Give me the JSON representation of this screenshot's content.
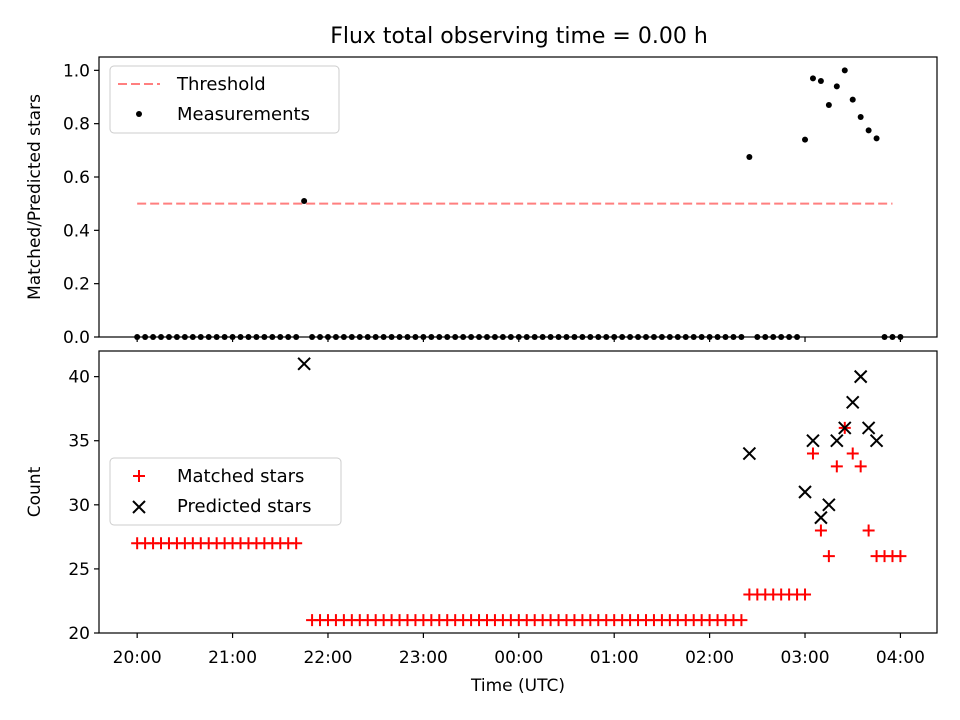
{
  "figure": {
    "title": "Flux total observing time = 0.00 h"
  },
  "colors": {
    "threshold": "#ff7f7f",
    "measurements": "#000000",
    "matched": "#ff0000",
    "predicted": "#000000"
  },
  "chart_data": [
    {
      "type": "scatter",
      "panel": "top",
      "title": "Flux total observing time = 0.00 h",
      "xlabel": "",
      "ylabel": "Matched/Predicted stars",
      "xlim": [
        "19:36",
        "04:23"
      ],
      "ylim": [
        0,
        1.05
      ],
      "yticks": [
        0.0,
        0.2,
        0.4,
        0.6,
        0.8,
        1.0
      ],
      "ytick_labels": [
        "0.0",
        "0.2",
        "0.4",
        "0.6",
        "0.8",
        "1.0"
      ],
      "grid": false,
      "legend": "upper-left",
      "threshold": {
        "name": "Threshold",
        "value": 0.5,
        "x_start": "20:00",
        "x_end": "03:55",
        "style": "dashed"
      },
      "series": [
        {
          "name": "Measurements",
          "marker": "dot",
          "points": [
            [
              "20:00",
              0
            ],
            [
              "20:05",
              0
            ],
            [
              "20:10",
              0
            ],
            [
              "20:15",
              0
            ],
            [
              "20:20",
              0
            ],
            [
              "20:25",
              0
            ],
            [
              "20:30",
              0
            ],
            [
              "20:35",
              0
            ],
            [
              "20:40",
              0
            ],
            [
              "20:45",
              0
            ],
            [
              "20:50",
              0
            ],
            [
              "20:55",
              0
            ],
            [
              "21:00",
              0
            ],
            [
              "21:05",
              0
            ],
            [
              "21:10",
              0
            ],
            [
              "21:15",
              0
            ],
            [
              "21:20",
              0
            ],
            [
              "21:25",
              0
            ],
            [
              "21:30",
              0
            ],
            [
              "21:35",
              0
            ],
            [
              "21:40",
              0
            ],
            [
              "21:45",
              0.51
            ],
            [
              "21:50",
              0
            ],
            [
              "21:55",
              0
            ],
            [
              "22:00",
              0
            ],
            [
              "22:05",
              0
            ],
            [
              "22:10",
              0
            ],
            [
              "22:15",
              0
            ],
            [
              "22:20",
              0
            ],
            [
              "22:25",
              0
            ],
            [
              "22:30",
              0
            ],
            [
              "22:35",
              0
            ],
            [
              "22:40",
              0
            ],
            [
              "22:45",
              0
            ],
            [
              "22:50",
              0
            ],
            [
              "22:55",
              0
            ],
            [
              "23:00",
              0
            ],
            [
              "23:05",
              0
            ],
            [
              "23:10",
              0
            ],
            [
              "23:15",
              0
            ],
            [
              "23:20",
              0
            ],
            [
              "23:25",
              0
            ],
            [
              "23:30",
              0
            ],
            [
              "23:35",
              0
            ],
            [
              "23:40",
              0
            ],
            [
              "23:45",
              0
            ],
            [
              "23:50",
              0
            ],
            [
              "23:55",
              0
            ],
            [
              "00:00",
              0
            ],
            [
              "00:05",
              0
            ],
            [
              "00:10",
              0
            ],
            [
              "00:15",
              0
            ],
            [
              "00:20",
              0
            ],
            [
              "00:25",
              0
            ],
            [
              "00:30",
              0
            ],
            [
              "00:35",
              0
            ],
            [
              "00:40",
              0
            ],
            [
              "00:45",
              0
            ],
            [
              "00:50",
              0
            ],
            [
              "00:55",
              0
            ],
            [
              "01:00",
              0
            ],
            [
              "01:05",
              0
            ],
            [
              "01:10",
              0
            ],
            [
              "01:15",
              0
            ],
            [
              "01:20",
              0
            ],
            [
              "01:25",
              0
            ],
            [
              "01:30",
              0
            ],
            [
              "01:35",
              0
            ],
            [
              "01:40",
              0
            ],
            [
              "01:45",
              0
            ],
            [
              "01:50",
              0
            ],
            [
              "01:55",
              0
            ],
            [
              "02:00",
              0
            ],
            [
              "02:05",
              0
            ],
            [
              "02:10",
              0
            ],
            [
              "02:15",
              0
            ],
            [
              "02:20",
              0
            ],
            [
              "02:25",
              0.675
            ],
            [
              "02:30",
              0
            ],
            [
              "02:35",
              0
            ],
            [
              "02:40",
              0
            ],
            [
              "02:45",
              0
            ],
            [
              "02:50",
              0
            ],
            [
              "02:55",
              0
            ],
            [
              "03:00",
              0.74
            ],
            [
              "03:05",
              0.97
            ],
            [
              "03:10",
              0.96
            ],
            [
              "03:15",
              0.87
            ],
            [
              "03:20",
              0.94
            ],
            [
              "03:25",
              1.0
            ],
            [
              "03:30",
              0.89
            ],
            [
              "03:35",
              0.825
            ],
            [
              "03:40",
              0.775
            ],
            [
              "03:45",
              0.745
            ],
            [
              "03:50",
              0
            ],
            [
              "03:55",
              0
            ],
            [
              "04:00",
              0
            ]
          ]
        }
      ]
    },
    {
      "type": "scatter",
      "panel": "bottom",
      "xlabel": "Time (UTC)",
      "ylabel": "Count",
      "xlim": [
        "19:36",
        "04:23"
      ],
      "ylim": [
        20,
        42
      ],
      "yticks": [
        20,
        25,
        30,
        35,
        40
      ],
      "xticks": [
        "20:00",
        "21:00",
        "22:00",
        "23:00",
        "00:00",
        "01:00",
        "02:00",
        "03:00",
        "04:00"
      ],
      "grid": false,
      "legend": "center-left",
      "series": [
        {
          "name": "Matched stars",
          "marker": "plus",
          "points": [
            [
              "20:00",
              27
            ],
            [
              "20:05",
              27
            ],
            [
              "20:10",
              27
            ],
            [
              "20:15",
              27
            ],
            [
              "20:20",
              27
            ],
            [
              "20:25",
              27
            ],
            [
              "20:30",
              27
            ],
            [
              "20:35",
              27
            ],
            [
              "20:40",
              27
            ],
            [
              "20:45",
              27
            ],
            [
              "20:50",
              27
            ],
            [
              "20:55",
              27
            ],
            [
              "21:00",
              27
            ],
            [
              "21:05",
              27
            ],
            [
              "21:10",
              27
            ],
            [
              "21:15",
              27
            ],
            [
              "21:20",
              27
            ],
            [
              "21:25",
              27
            ],
            [
              "21:30",
              27
            ],
            [
              "21:35",
              27
            ],
            [
              "21:40",
              27
            ],
            [
              "21:50",
              21
            ],
            [
              "21:55",
              21
            ],
            [
              "22:00",
              21
            ],
            [
              "22:05",
              21
            ],
            [
              "22:10",
              21
            ],
            [
              "22:15",
              21
            ],
            [
              "22:20",
              21
            ],
            [
              "22:25",
              21
            ],
            [
              "22:30",
              21
            ],
            [
              "22:35",
              21
            ],
            [
              "22:40",
              21
            ],
            [
              "22:45",
              21
            ],
            [
              "22:50",
              21
            ],
            [
              "22:55",
              21
            ],
            [
              "23:00",
              21
            ],
            [
              "23:05",
              21
            ],
            [
              "23:10",
              21
            ],
            [
              "23:15",
              21
            ],
            [
              "23:20",
              21
            ],
            [
              "23:25",
              21
            ],
            [
              "23:30",
              21
            ],
            [
              "23:35",
              21
            ],
            [
              "23:40",
              21
            ],
            [
              "23:45",
              21
            ],
            [
              "23:50",
              21
            ],
            [
              "23:55",
              21
            ],
            [
              "00:00",
              21
            ],
            [
              "00:05",
              21
            ],
            [
              "00:10",
              21
            ],
            [
              "00:15",
              21
            ],
            [
              "00:20",
              21
            ],
            [
              "00:25",
              21
            ],
            [
              "00:30",
              21
            ],
            [
              "00:35",
              21
            ],
            [
              "00:40",
              21
            ],
            [
              "00:45",
              21
            ],
            [
              "00:50",
              21
            ],
            [
              "00:55",
              21
            ],
            [
              "01:00",
              21
            ],
            [
              "01:05",
              21
            ],
            [
              "01:10",
              21
            ],
            [
              "01:15",
              21
            ],
            [
              "01:20",
              21
            ],
            [
              "01:25",
              21
            ],
            [
              "01:30",
              21
            ],
            [
              "01:35",
              21
            ],
            [
              "01:40",
              21
            ],
            [
              "01:45",
              21
            ],
            [
              "01:50",
              21
            ],
            [
              "01:55",
              21
            ],
            [
              "02:00",
              21
            ],
            [
              "02:05",
              21
            ],
            [
              "02:10",
              21
            ],
            [
              "02:15",
              21
            ],
            [
              "02:20",
              21
            ],
            [
              "02:25",
              23
            ],
            [
              "02:30",
              23
            ],
            [
              "02:35",
              23
            ],
            [
              "02:40",
              23
            ],
            [
              "02:45",
              23
            ],
            [
              "02:50",
              23
            ],
            [
              "02:55",
              23
            ],
            [
              "03:00",
              23
            ],
            [
              "03:05",
              34
            ],
            [
              "03:10",
              28
            ],
            [
              "03:15",
              26
            ],
            [
              "03:20",
              33
            ],
            [
              "03:25",
              36
            ],
            [
              "03:30",
              34
            ],
            [
              "03:35",
              33
            ],
            [
              "03:40",
              28
            ],
            [
              "03:45",
              26
            ],
            [
              "03:50",
              26
            ],
            [
              "03:55",
              26
            ],
            [
              "04:00",
              26
            ]
          ]
        },
        {
          "name": "Predicted stars",
          "marker": "x",
          "points": [
            [
              "21:45",
              41
            ],
            [
              "02:25",
              34
            ],
            [
              "03:00",
              31
            ],
            [
              "03:05",
              35
            ],
            [
              "03:10",
              29
            ],
            [
              "03:15",
              30
            ],
            [
              "03:20",
              35
            ],
            [
              "03:25",
              36
            ],
            [
              "03:30",
              38
            ],
            [
              "03:35",
              40
            ],
            [
              "03:40",
              36
            ],
            [
              "03:45",
              35
            ]
          ]
        }
      ]
    }
  ]
}
